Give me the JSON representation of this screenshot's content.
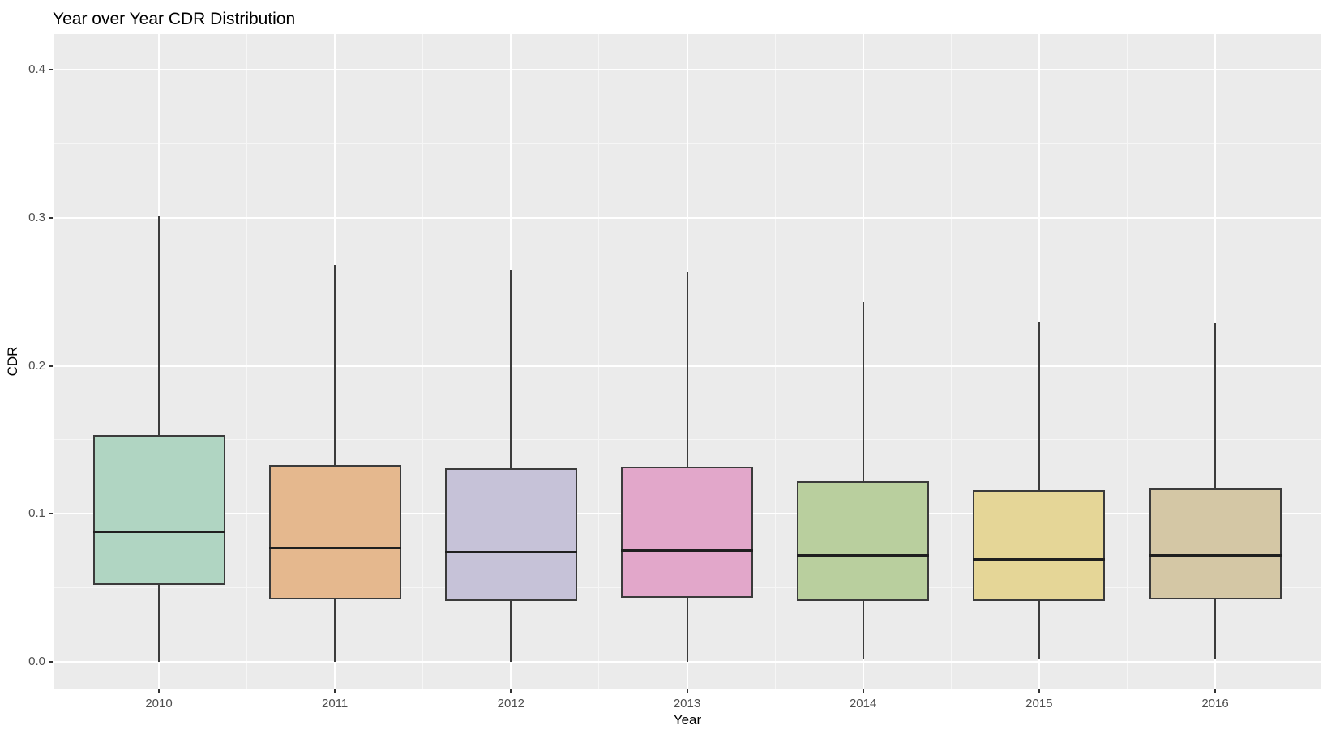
{
  "chart_data": {
    "type": "boxplot",
    "title": "Year over Year CDR Distribution",
    "xlabel": "Year",
    "ylabel": "CDR",
    "categories": [
      "2010",
      "2011",
      "2012",
      "2013",
      "2014",
      "2015",
      "2016"
    ],
    "y_tick_labels": [
      "0.0",
      "0.1",
      "0.2",
      "0.3",
      "0.4"
    ],
    "y_major_ticks": [
      0.0,
      0.1,
      0.2,
      0.3,
      0.4
    ],
    "y_minor_ticks": [
      0.05,
      0.15,
      0.25,
      0.35
    ],
    "ylim": [
      -0.018,
      0.424
    ],
    "grid": true,
    "legend": "none",
    "boxes": [
      {
        "year": "2010",
        "min": 0.0,
        "q1": 0.052,
        "median": 0.088,
        "q3": 0.153,
        "max": 0.301,
        "fill": "#b0d5c2"
      },
      {
        "year": "2011",
        "min": 0.0,
        "q1": 0.042,
        "median": 0.077,
        "q3": 0.133,
        "max": 0.268,
        "fill": "#e5b88e"
      },
      {
        "year": "2012",
        "min": 0.0,
        "q1": 0.041,
        "median": 0.074,
        "q3": 0.131,
        "max": 0.265,
        "fill": "#c6c2d8"
      },
      {
        "year": "2013",
        "min": 0.0,
        "q1": 0.043,
        "median": 0.075,
        "q3": 0.132,
        "max": 0.263,
        "fill": "#e2a7ca"
      },
      {
        "year": "2014",
        "min": 0.002,
        "q1": 0.041,
        "median": 0.072,
        "q3": 0.122,
        "max": 0.243,
        "fill": "#b9cf9e"
      },
      {
        "year": "2015",
        "min": 0.002,
        "q1": 0.041,
        "median": 0.069,
        "q3": 0.116,
        "max": 0.23,
        "fill": "#e5d697"
      },
      {
        "year": "2016",
        "min": 0.002,
        "q1": 0.042,
        "median": 0.072,
        "q3": 0.117,
        "max": 0.229,
        "fill": "#d4c7a5"
      }
    ],
    "style": {
      "panel_bg": "#ebebeb",
      "grid_major_color": "#ffffff",
      "grid_minor_color": "#f6f6f6",
      "box_border_color": "#3b3b3b",
      "median_color": "#1f1f1f",
      "whisker_color": "#3b3b3b",
      "tick_label_color": "#4d4d4d",
      "axis_title_color": "#000000",
      "title_color": "#000000"
    }
  }
}
